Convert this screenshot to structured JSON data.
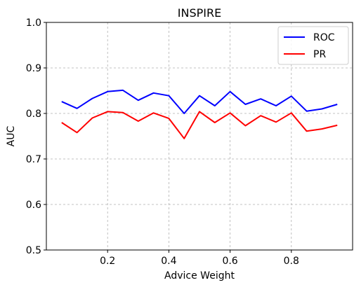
{
  "chart_data": {
    "type": "line",
    "title": "INSPIRE",
    "xlabel": "Advice Weight",
    "ylabel": "AUC",
    "xlim": [
      0.0,
      1.0
    ],
    "ylim": [
      0.5,
      1.0
    ],
    "xticks": [
      0.2,
      0.4,
      0.6,
      0.8
    ],
    "xtick_labels": [
      "0.2",
      "0.4",
      "0.6",
      "0.8"
    ],
    "yticks": [
      0.5,
      0.6,
      0.7,
      0.8,
      0.9,
      1.0
    ],
    "ytick_labels": [
      "0.5",
      "0.6",
      "0.7",
      "0.8",
      "0.9",
      "1.0"
    ],
    "grid": true,
    "legend_position": "top-right",
    "x": [
      0.05,
      0.1,
      0.15,
      0.2,
      0.25,
      0.3,
      0.35,
      0.4,
      0.45,
      0.5,
      0.55,
      0.6,
      0.65,
      0.7,
      0.75,
      0.8,
      0.85,
      0.9,
      0.95
    ],
    "series": [
      {
        "name": "ROC",
        "color": "#0000ff",
        "values": [
          0.826,
          0.811,
          0.833,
          0.848,
          0.851,
          0.829,
          0.845,
          0.839,
          0.8,
          0.839,
          0.817,
          0.848,
          0.82,
          0.832,
          0.817,
          0.838,
          0.805,
          0.81,
          0.82
        ]
      },
      {
        "name": "PR",
        "color": "#ff0000",
        "values": [
          0.78,
          0.758,
          0.79,
          0.804,
          0.802,
          0.783,
          0.801,
          0.789,
          0.745,
          0.804,
          0.78,
          0.801,
          0.773,
          0.795,
          0.781,
          0.801,
          0.761,
          0.766,
          0.774
        ]
      }
    ]
  }
}
